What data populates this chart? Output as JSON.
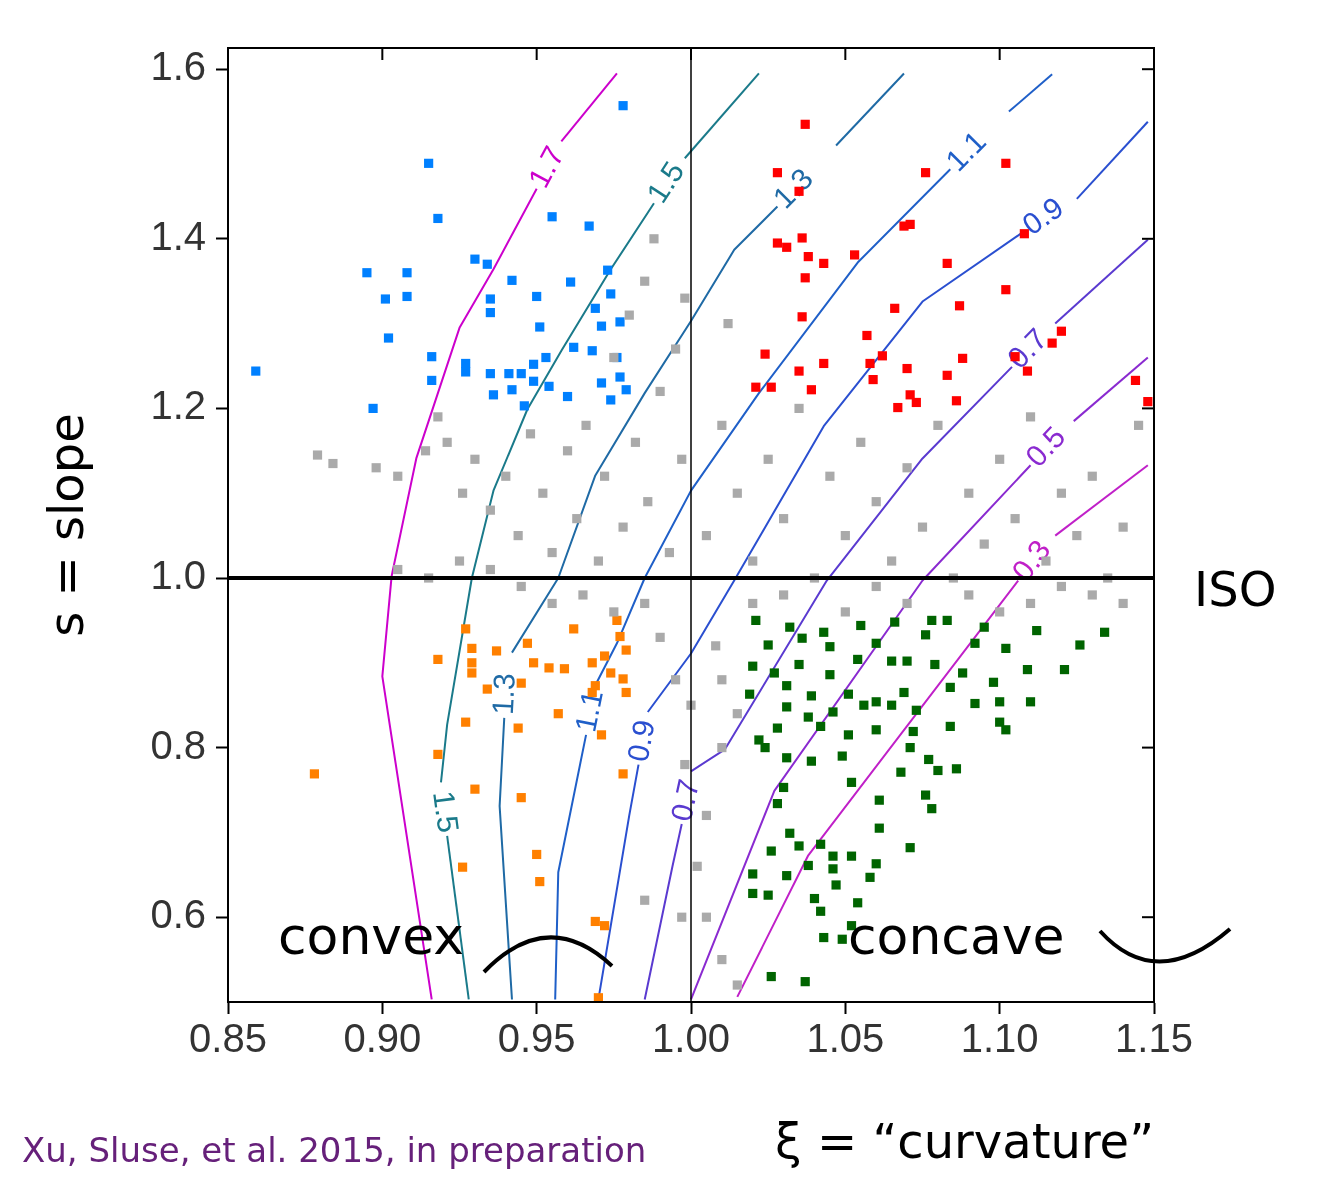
{
  "chart_data": {
    "type": "scatter",
    "xlabel": "ξ = “curvature”",
    "ylabel": "s = slope",
    "xlim": [
      0.85,
      1.15
    ],
    "ylim": [
      0.5,
      1.625
    ],
    "xticks": [
      {
        "value": 0.85,
        "label": "0.85"
      },
      {
        "value": 0.9,
        "label": "0.90"
      },
      {
        "value": 0.95,
        "label": "0.95"
      },
      {
        "value": 1.0,
        "label": "1.00"
      },
      {
        "value": 1.05,
        "label": "1.05"
      },
      {
        "value": 1.1,
        "label": "1.10"
      },
      {
        "value": 1.15,
        "label": "1.15"
      }
    ],
    "yticks": [
      {
        "value": 0.6,
        "label": "0.6"
      },
      {
        "value": 0.8,
        "label": "0.8"
      },
      {
        "value": 1.0,
        "label": "1.0"
      },
      {
        "value": 1.2,
        "label": "1.2"
      },
      {
        "value": 1.4,
        "label": "1.4"
      },
      {
        "value": 1.6,
        "label": "1.6"
      }
    ],
    "grid": false,
    "legend": false,
    "marker": "square",
    "ref_lines": [
      {
        "axis": "y",
        "value": 1.0,
        "label": "ISO",
        "color": "#000000"
      },
      {
        "axis": "x",
        "value": 1.0,
        "color": "#000000"
      }
    ],
    "annotations": [
      "convex",
      "concave",
      "Xu, Sluse, et al. 2015, in preparation"
    ],
    "series": [
      {
        "type": "line",
        "marker": "none",
        "name": "1.7",
        "color": "#cc00cc",
        "x": [
          0.916,
          0.9,
          0.903,
          0.911,
          0.925,
          0.936,
          0.95
        ],
        "values": [
          0.503,
          0.884,
          1.002,
          1.141,
          1.295,
          1.364,
          1.459
        ]
      },
      {
        "type": "line",
        "marker": "none",
        "color": "#cc00cc",
        "x": [
          0.958,
          0.976
        ],
        "values": [
          1.515,
          1.595
        ]
      },
      {
        "type": "line",
        "marker": "none",
        "name": "1.5",
        "color": "#1a7a8a",
        "x": [
          0.928,
          0.921
        ],
        "values": [
          0.503,
          0.696
        ]
      },
      {
        "type": "line",
        "marker": "none",
        "name": "1.5",
        "color": "#1a7a8a",
        "x": [
          0.919,
          0.921,
          0.929,
          0.936,
          0.947,
          0.958,
          0.974,
          0.988
        ],
        "values": [
          0.759,
          0.827,
          1.0,
          1.103,
          1.199,
          1.268,
          1.364,
          1.442
        ]
      },
      {
        "type": "line",
        "marker": "none",
        "color": "#1a7a8a",
        "x": [
          0.998,
          1.022
        ],
        "values": [
          1.495,
          1.595
        ]
      },
      {
        "type": "line",
        "marker": "none",
        "name": "1.3",
        "color": "#1f6aa5",
        "x": [
          0.942,
          0.938,
          0.9395
        ],
        "values": [
          0.503,
          0.731,
          0.835
        ]
      },
      {
        "type": "line",
        "marker": "none",
        "name": "1.3",
        "color": "#1f6aa5",
        "x": [
          0.942,
          0.957,
          0.969,
          0.985,
          1.0,
          1.014,
          1.028
        ],
        "values": [
          0.912,
          1.0,
          1.121,
          1.218,
          1.303,
          1.387,
          1.438
        ]
      },
      {
        "type": "line",
        "marker": "none",
        "color": "#1f6aa5",
        "x": [
          1.047,
          1.069
        ],
        "values": [
          1.51,
          1.595
        ]
      },
      {
        "type": "line",
        "marker": "none",
        "name": "1.1",
        "color": "#1f5fc8",
        "x": [
          0.956,
          0.957,
          0.966
        ],
        "values": [
          0.503,
          0.653,
          0.815
        ]
      },
      {
        "type": "line",
        "marker": "none",
        "name": "1.1",
        "color": "#1f5fc8",
        "x": [
          0.9695,
          0.976,
          0.985,
          1.0,
          1.022,
          1.054,
          1.084
        ],
        "values": [
          0.877,
          0.923,
          1.0,
          1.103,
          1.218,
          1.372,
          1.482
        ]
      },
      {
        "type": "line",
        "marker": "none",
        "color": "#1f5fc8",
        "x": [
          1.103,
          1.117
        ],
        "values": [
          1.55,
          1.594
        ]
      },
      {
        "type": "line",
        "marker": "none",
        "name": "0.9",
        "color": "#2a4fd0",
        "x": [
          0.97,
          0.98,
          0.983
        ],
        "values": [
          0.503,
          0.72,
          0.78
        ]
      },
      {
        "type": "line",
        "marker": "none",
        "name": "0.9",
        "color": "#2a4fd0",
        "x": [
          0.986,
          1.0,
          1.014,
          1.043,
          1.075,
          1.108
        ],
        "values": [
          0.842,
          0.911,
          0.997,
          1.179,
          1.326,
          1.409
        ]
      },
      {
        "type": "line",
        "marker": "none",
        "color": "#2a4fd0",
        "x": [
          1.125,
          1.148
        ],
        "values": [
          1.447,
          1.538
        ]
      },
      {
        "type": "line",
        "marker": "none",
        "name": "0.7",
        "color": "#5a3ad0",
        "x": [
          0.985,
          0.994,
          0.997
        ],
        "values": [
          0.503,
          0.66,
          0.71
        ]
      },
      {
        "type": "line",
        "marker": "none",
        "name": "0.7",
        "color": "#5a3ad0",
        "x": [
          1.0,
          1.011,
          1.044,
          1.075,
          1.104
        ],
        "values": [
          0.772,
          0.798,
          0.997,
          1.141,
          1.249
        ]
      },
      {
        "type": "line",
        "marker": "none",
        "color": "#5a3ad0",
        "x": [
          1.118,
          1.148
        ],
        "values": [
          1.3,
          1.399
        ]
      },
      {
        "type": "line",
        "marker": "none",
        "name": "0.5",
        "color": "#8a2ad0",
        "x": [
          1.0,
          1.027,
          1.075,
          1.11
        ],
        "values": [
          0.503,
          0.749,
          0.997,
          1.133
        ]
      },
      {
        "type": "line",
        "marker": "none",
        "color": "#8a2ad0",
        "x": [
          1.124,
          1.148
        ],
        "values": [
          1.185,
          1.26
        ]
      },
      {
        "type": "line",
        "marker": "none",
        "name": "0.3",
        "color": "#c020c8",
        "x": [
          1.015,
          1.038,
          1.106
        ],
        "values": [
          0.506,
          0.673,
          0.997
        ]
      },
      {
        "type": "line",
        "marker": "none",
        "color": "#c020c8",
        "x": [
          1.118,
          1.148
        ],
        "values": [
          1.05,
          1.133
        ]
      },
      {
        "color": "#aaaaaa",
        "x": [
          0.879,
          0.884,
          0.898,
          0.905,
          0.914,
          0.918,
          0.921,
          0.926,
          0.93,
          0.935,
          0.94,
          0.944,
          0.948,
          0.952,
          0.955,
          0.96,
          0.963,
          0.966,
          0.97,
          0.972,
          0.975,
          0.978,
          0.98,
          0.982,
          0.985,
          0.986,
          0.988,
          0.99,
          0.993,
          0.995,
          0.997,
          0.998,
          0.905,
          0.915,
          0.925,
          0.935,
          0.945,
          0.955,
          0.965,
          0.975,
          0.985,
          0.99,
          0.995,
          1.0,
          0.998,
          1.005,
          1.002,
          0.997,
          1.01,
          0.985,
          1.01,
          1.008,
          1.005,
          1.01,
          1.012,
          1.015,
          1.02,
          1.025,
          1.03,
          1.035,
          1.04,
          1.045,
          1.05,
          1.055,
          1.06,
          1.065,
          1.07,
          1.075,
          1.08,
          1.085,
          1.09,
          1.095,
          1.1,
          1.105,
          1.11,
          1.115,
          1.12,
          1.125,
          1.13,
          1.135,
          1.14,
          1.145,
          1.02,
          1.03,
          1.05,
          1.06,
          1.07,
          1.09,
          1.1,
          1.11,
          1.12,
          1.13,
          1.14,
          1.01,
          1.015,
          1.005,
          1.015
        ],
        "values": [
          1.145,
          1.135,
          1.13,
          1.12,
          1.15,
          1.19,
          1.16,
          1.1,
          1.14,
          1.08,
          1.12,
          1.05,
          1.17,
          1.1,
          1.03,
          1.15,
          1.07,
          1.18,
          1.02,
          1.12,
          1.26,
          1.06,
          1.31,
          1.16,
          1.35,
          1.09,
          1.4,
          1.22,
          1.03,
          1.27,
          1.14,
          1.33,
          1.01,
          1.0,
          1.02,
          1.01,
          0.99,
          0.97,
          0.98,
          0.96,
          0.97,
          0.93,
          0.88,
          0.85,
          0.78,
          0.72,
          0.66,
          0.6,
          0.55,
          0.62,
          0.8,
          0.92,
          1.05,
          1.18,
          1.3,
          1.1,
          1.02,
          1.14,
          1.07,
          1.2,
          1.0,
          1.12,
          1.05,
          1.16,
          1.09,
          1.02,
          1.13,
          1.06,
          1.18,
          1.0,
          1.1,
          1.04,
          1.14,
          1.07,
          1.19,
          1.02,
          1.1,
          1.05,
          1.12,
          1.0,
          1.06,
          1.18,
          0.97,
          0.98,
          0.96,
          0.99,
          0.97,
          0.98,
          0.96,
          0.97,
          0.99,
          0.98,
          0.97,
          0.88,
          0.84,
          0.6,
          0.52
        ]
      },
      {
        "color": "#0080ff",
        "x": [
          0.978,
          0.915,
          0.918,
          0.955,
          0.967,
          0.93,
          0.934,
          0.895,
          0.908,
          0.942,
          0.961,
          0.901,
          0.908,
          0.935,
          0.95,
          0.973,
          0.974,
          0.969,
          0.935,
          0.971,
          0.977,
          0.951,
          0.902,
          0.916,
          0.927,
          0.962,
          0.968,
          0.976,
          0.953,
          0.949,
          0.859,
          0.916,
          0.927,
          0.935,
          0.941,
          0.945,
          0.949,
          0.954,
          0.971,
          0.977,
          0.979,
          0.936,
          0.942,
          0.96,
          0.974,
          0.946,
          0.897
        ],
        "values": [
          1.557,
          1.489,
          1.424,
          1.426,
          1.415,
          1.376,
          1.37,
          1.36,
          1.36,
          1.351,
          1.349,
          1.329,
          1.332,
          1.329,
          1.332,
          1.363,
          1.335,
          1.318,
          1.313,
          1.297,
          1.302,
          1.296,
          1.283,
          1.261,
          1.253,
          1.272,
          1.268,
          1.26,
          1.26,
          1.252,
          1.244,
          1.233,
          1.243,
          1.241,
          1.241,
          1.241,
          1.232,
          1.226,
          1.23,
          1.237,
          1.222,
          1.216,
          1.222,
          1.214,
          1.21,
          1.203,
          1.2
        ]
      },
      {
        "color": "#ff0000",
        "x": [
          1.037,
          1.028,
          1.035,
          1.076,
          1.102,
          1.069,
          1.071,
          1.108,
          1.028,
          1.031,
          1.036,
          1.038,
          1.043,
          1.053,
          1.037,
          1.083,
          1.102,
          1.066,
          1.087,
          1.036,
          1.057,
          1.12,
          1.117,
          1.024,
          1.088,
          1.105,
          1.035,
          1.043,
          1.058,
          1.062,
          1.07,
          1.059,
          1.083,
          1.109,
          1.021,
          1.026,
          1.039,
          1.071,
          1.073,
          1.067,
          1.086,
          1.144,
          1.148
        ],
        "values": [
          1.535,
          1.478,
          1.456,
          1.478,
          1.489,
          1.415,
          1.417,
          1.406,
          1.395,
          1.39,
          1.401,
          1.379,
          1.371,
          1.381,
          1.354,
          1.371,
          1.34,
          1.318,
          1.321,
          1.308,
          1.286,
          1.291,
          1.277,
          1.264,
          1.259,
          1.261,
          1.244,
          1.253,
          1.253,
          1.262,
          1.247,
          1.234,
          1.239,
          1.244,
          1.225,
          1.225,
          1.222,
          1.216,
          1.207,
          1.201,
          1.209,
          1.233,
          1.208
        ]
      },
      {
        "color": "#ff8000",
        "x": [
          0.927,
          0.962,
          0.976,
          0.929,
          0.937,
          0.947,
          0.918,
          0.929,
          0.929,
          0.949,
          0.954,
          0.959,
          0.968,
          0.977,
          0.979,
          0.972,
          0.974,
          0.969,
          0.979,
          0.968,
          0.978,
          0.934,
          0.945,
          0.957,
          0.927,
          0.944,
          0.971,
          0.918,
          0.878,
          0.93,
          0.945,
          0.978,
          0.95,
          0.926,
          0.951,
          0.969,
          0.972,
          0.97
        ],
        "values": [
          0.94,
          0.94,
          0.95,
          0.917,
          0.914,
          0.923,
          0.904,
          0.9,
          0.888,
          0.9,
          0.894,
          0.893,
          0.9,
          0.931,
          0.915,
          0.908,
          0.888,
          0.873,
          0.865,
          0.865,
          0.881,
          0.869,
          0.876,
          0.84,
          0.83,
          0.823,
          0.815,
          0.792,
          0.769,
          0.751,
          0.741,
          0.769,
          0.674,
          0.659,
          0.642,
          0.595,
          0.59,
          0.505
        ]
      },
      {
        "color": "#006400",
        "x": [
          1.021,
          1.032,
          1.043,
          1.055,
          1.066,
          1.078,
          1.083,
          1.095,
          1.112,
          1.134,
          1.126,
          1.102,
          1.092,
          1.076,
          1.06,
          1.045,
          1.025,
          1.036,
          1.02,
          1.027,
          1.035,
          1.045,
          1.054,
          1.065,
          1.07,
          1.079,
          1.088,
          1.109,
          1.121,
          1.098,
          1.084,
          1.069,
          1.06,
          1.051,
          1.039,
          1.031,
          1.019,
          1.031,
          1.038,
          1.046,
          1.056,
          1.065,
          1.073,
          1.092,
          1.1,
          1.11,
          1.1,
          1.102,
          1.084,
          1.072,
          1.06,
          1.051,
          1.042,
          1.028,
          1.022,
          1.024,
          1.031,
          1.039,
          1.049,
          1.071,
          1.077,
          1.08,
          1.068,
          1.086,
          1.052,
          1.03,
          1.028,
          1.061,
          1.076,
          1.078,
          1.061,
          1.032,
          1.035,
          1.042,
          1.046,
          1.052,
          1.026,
          1.071,
          1.038,
          1.046,
          1.06,
          1.02,
          1.031,
          1.047,
          1.058,
          1.02,
          1.025,
          1.04,
          1.042,
          1.054,
          1.052,
          1.043,
          1.049,
          1.026,
          1.037
        ],
        "values": [
          0.95,
          0.942,
          0.936,
          0.944,
          0.948,
          0.95,
          0.95,
          0.942,
          0.938,
          0.936,
          0.921,
          0.917,
          0.923,
          0.933,
          0.923,
          0.919,
          0.921,
          0.929,
          0.896,
          0.888,
          0.898,
          0.886,
          0.904,
          0.902,
          0.902,
          0.898,
          0.888,
          0.892,
          0.892,
          0.877,
          0.871,
          0.865,
          0.854,
          0.863,
          0.861,
          0.873,
          0.863,
          0.848,
          0.836,
          0.842,
          0.85,
          0.85,
          0.844,
          0.852,
          0.854,
          0.854,
          0.83,
          0.821,
          0.825,
          0.819,
          0.821,
          0.815,
          0.825,
          0.823,
          0.809,
          0.8,
          0.788,
          0.784,
          0.79,
          0.8,
          0.786,
          0.773,
          0.771,
          0.775,
          0.759,
          0.753,
          0.734,
          0.738,
          0.744,
          0.728,
          0.705,
          0.699,
          0.684,
          0.686,
          0.672,
          0.672,
          0.678,
          0.682,
          0.661,
          0.657,
          0.663,
          0.651,
          0.649,
          0.638,
          0.647,
          0.628,
          0.626,
          0.622,
          0.607,
          0.617,
          0.59,
          0.576,
          0.574,
          0.53,
          0.524
        ]
      }
    ]
  }
}
